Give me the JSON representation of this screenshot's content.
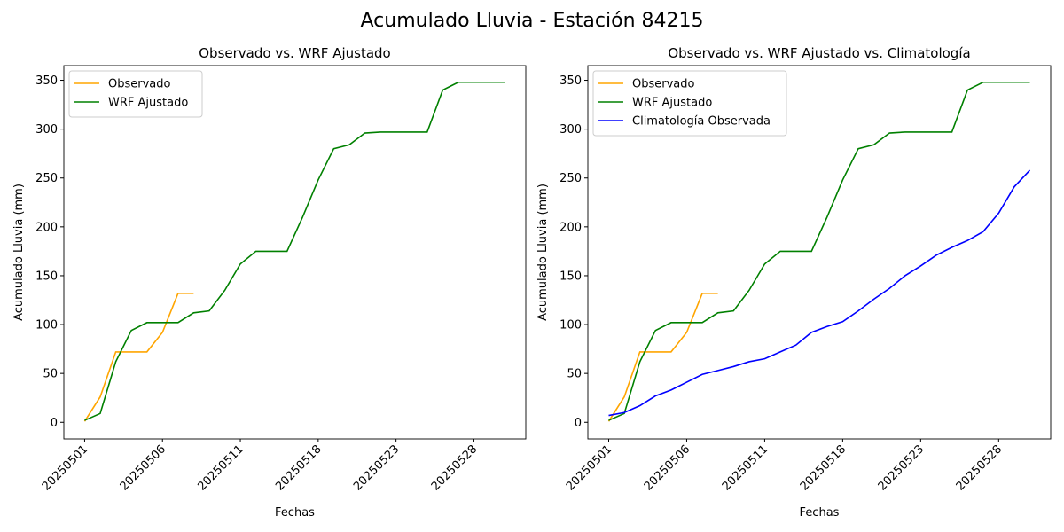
{
  "title": "Acumulado Lluvia - Estación 84215",
  "chart_data": [
    {
      "type": "line",
      "title": "Observado vs. WRF Ajustado",
      "xlabel": "Fechas",
      "ylabel": "Acumulado Lluvia (mm)",
      "categories": [
        "20250501",
        null,
        null,
        null,
        null,
        "20250506",
        null,
        null,
        null,
        null,
        "20250511",
        null,
        null,
        null,
        null,
        "20250518",
        null,
        null,
        null,
        null,
        "20250523",
        null,
        null,
        null,
        null,
        "20250528",
        null,
        null
      ],
      "series": [
        {
          "name": "Observado",
          "color": "orange",
          "values": [
            1,
            26,
            72,
            72,
            72,
            92,
            132,
            132,
            null,
            null,
            null,
            null,
            null,
            null,
            null,
            null,
            null,
            null,
            null,
            null,
            null,
            null,
            null,
            null,
            null,
            null,
            null,
            null
          ]
        },
        {
          "name": "WRF Ajustado",
          "color": "green",
          "values": [
            2,
            9,
            62,
            94,
            102,
            102,
            102,
            112,
            114,
            135,
            162,
            175,
            175,
            175,
            210,
            248,
            280,
            284,
            296,
            297,
            297,
            297,
            297,
            340,
            348,
            348,
            348,
            348
          ]
        }
      ],
      "ylim": [
        -17,
        365
      ],
      "yticks": [
        0,
        50,
        100,
        150,
        200,
        250,
        300,
        350
      ],
      "legend": "upper left"
    },
    {
      "type": "line",
      "title": "Observado vs. WRF Ajustado vs. Climatología",
      "xlabel": "Fechas",
      "ylabel": "Acumulado Lluvia (mm)",
      "categories": [
        "20250501",
        null,
        null,
        null,
        null,
        "20250506",
        null,
        null,
        null,
        null,
        "20250511",
        null,
        null,
        null,
        null,
        "20250518",
        null,
        null,
        null,
        null,
        "20250523",
        null,
        null,
        null,
        null,
        "20250528",
        null,
        null
      ],
      "series": [
        {
          "name": "Observado",
          "color": "orange",
          "values": [
            1,
            26,
            72,
            72,
            72,
            92,
            132,
            132,
            null,
            null,
            null,
            null,
            null,
            null,
            null,
            null,
            null,
            null,
            null,
            null,
            null,
            null,
            null,
            null,
            null,
            null,
            null,
            null
          ]
        },
        {
          "name": "WRF Ajustado",
          "color": "green",
          "values": [
            2,
            9,
            62,
            94,
            102,
            102,
            102,
            112,
            114,
            135,
            162,
            175,
            175,
            175,
            210,
            248,
            280,
            284,
            296,
            297,
            297,
            297,
            297,
            340,
            348,
            348,
            348,
            348
          ]
        },
        {
          "name": "Climatología Observada",
          "color": "blue",
          "values": [
            7,
            10,
            17,
            27,
            33,
            41,
            49,
            53,
            57,
            62,
            65,
            72,
            79,
            92,
            98,
            103,
            114,
            126,
            137,
            150,
            160,
            171,
            179,
            186,
            195,
            214,
            241,
            258
          ]
        }
      ],
      "ylim": [
        -17,
        365
      ],
      "yticks": [
        0,
        50,
        100,
        150,
        200,
        250,
        300,
        350
      ],
      "legend": "upper left"
    }
  ]
}
